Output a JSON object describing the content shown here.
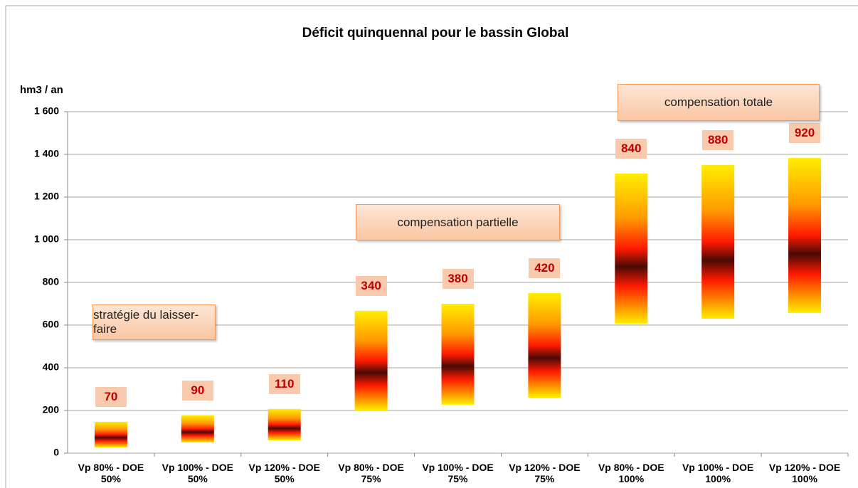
{
  "chart_data": {
    "type": "floating-bar",
    "title": "Déficit quinquennal pour le bassin Global",
    "y_axis_label": "hm3 / an",
    "categories": [
      "Vp 80% - DOE 50%",
      "Vp 100% - DOE 50%",
      "Vp 120% - DOE 50%",
      "Vp 80% - DOE 75%",
      "Vp 100% - DOE 75%",
      "Vp 120% - DOE 75%",
      "Vp 80% - DOE 100%",
      "Vp 100% - DOE 100%",
      "Vp 120% - DOE 100%"
    ],
    "low": [
      27,
      50,
      60,
      200,
      227,
      260,
      607,
      630,
      657
    ],
    "high": [
      147,
      177,
      207,
      667,
      700,
      750,
      1310,
      1350,
      1383
    ],
    "deficit_labels": [
      70,
      90,
      110,
      340,
      380,
      420,
      840,
      880,
      920
    ],
    "annotations": [
      "stratégie du laisser-faire",
      "compensation partielle",
      "compensation totale"
    ],
    "ylim": [
      0,
      1600
    ],
    "yticks": [
      0,
      200,
      400,
      600,
      800,
      {
        "value": 1000,
        "label": "1 000"
      },
      {
        "value": 1200,
        "label": "1 200"
      },
      {
        "value": 1400,
        "label": "1 400"
      },
      {
        "value": 1600,
        "label": "1 600"
      }
    ],
    "grid": true,
    "colors": [
      "#ffee00",
      "#ff9900",
      "#ff1a00",
      "#4a0a05"
    ]
  }
}
